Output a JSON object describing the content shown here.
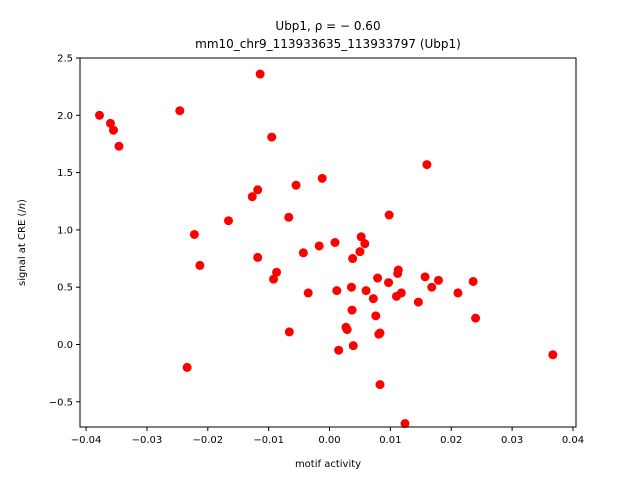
{
  "chart_data": {
    "type": "scatter",
    "title_line1": "Ubp1, ρ = − 0.60",
    "title_line2": "mm10_chr9_113933635_113933797 (Ubp1)",
    "xlabel": "motif activity",
    "ylabel": "signal at CRE (/n)",
    "xlim": [
      -0.041,
      0.0405
    ],
    "ylim": [
      -0.72,
      2.5
    ],
    "xticks": [
      -0.04,
      -0.03,
      -0.02,
      -0.01,
      0.0,
      0.01,
      0.02,
      0.03,
      0.04
    ],
    "xtick_labels": [
      "−0.04",
      "−0.03",
      "−0.02",
      "−0.01",
      "0.00",
      "0.01",
      "0.02",
      "0.03",
      "0.04"
    ],
    "yticks": [
      -0.5,
      0.0,
      0.5,
      1.0,
      1.5,
      2.0,
      2.5
    ],
    "ytick_labels": [
      "−0.5",
      "0.0",
      "0.5",
      "1.0",
      "1.5",
      "2.0",
      "2.5"
    ],
    "grid": false,
    "point_color": "#ff0000",
    "points": [
      {
        "x": -0.0378,
        "y": 2.0
      },
      {
        "x": -0.036,
        "y": 1.93
      },
      {
        "x": -0.0355,
        "y": 1.87
      },
      {
        "x": -0.0346,
        "y": 1.73
      },
      {
        "x": -0.0246,
        "y": 2.04
      },
      {
        "x": -0.0234,
        "y": -0.2
      },
      {
        "x": -0.0222,
        "y": 0.96
      },
      {
        "x": -0.0213,
        "y": 0.69
      },
      {
        "x": -0.0166,
        "y": 1.08
      },
      {
        "x": -0.0127,
        "y": 1.29
      },
      {
        "x": -0.0118,
        "y": 1.35
      },
      {
        "x": -0.0118,
        "y": 0.76
      },
      {
        "x": -0.0114,
        "y": 2.36
      },
      {
        "x": -0.0095,
        "y": 1.81
      },
      {
        "x": -0.0092,
        "y": 0.57
      },
      {
        "x": -0.0087,
        "y": 0.63
      },
      {
        "x": -0.0067,
        "y": 1.11
      },
      {
        "x": -0.0066,
        "y": 0.11
      },
      {
        "x": -0.0055,
        "y": 1.39
      },
      {
        "x": -0.0043,
        "y": 0.8
      },
      {
        "x": -0.0035,
        "y": 0.45
      },
      {
        "x": -0.0017,
        "y": 0.86
      },
      {
        "x": -0.0012,
        "y": 1.45
      },
      {
        "x": 0.0009,
        "y": 0.89
      },
      {
        "x": 0.0012,
        "y": 0.47
      },
      {
        "x": 0.0015,
        "y": -0.05
      },
      {
        "x": 0.0027,
        "y": 0.15
      },
      {
        "x": 0.0029,
        "y": 0.13
      },
      {
        "x": 0.0036,
        "y": 0.5
      },
      {
        "x": 0.0037,
        "y": 0.3
      },
      {
        "x": 0.0038,
        "y": 0.75
      },
      {
        "x": 0.0039,
        "y": -0.01
      },
      {
        "x": 0.005,
        "y": 0.81
      },
      {
        "x": 0.0052,
        "y": 0.94
      },
      {
        "x": 0.0058,
        "y": 0.88
      },
      {
        "x": 0.006,
        "y": 0.47
      },
      {
        "x": 0.0072,
        "y": 0.4
      },
      {
        "x": 0.0076,
        "y": 0.25
      },
      {
        "x": 0.0079,
        "y": 0.58
      },
      {
        "x": 0.0081,
        "y": 0.09
      },
      {
        "x": 0.0083,
        "y": 0.1
      },
      {
        "x": 0.0083,
        "y": -0.35
      },
      {
        "x": 0.0097,
        "y": 0.54
      },
      {
        "x": 0.0098,
        "y": 1.13
      },
      {
        "x": 0.011,
        "y": 0.42
      },
      {
        "x": 0.0112,
        "y": 0.62
      },
      {
        "x": 0.0113,
        "y": 0.65
      },
      {
        "x": 0.0118,
        "y": 0.45
      },
      {
        "x": 0.0124,
        "y": -0.69
      },
      {
        "x": 0.0146,
        "y": 0.37
      },
      {
        "x": 0.0157,
        "y": 0.59
      },
      {
        "x": 0.016,
        "y": 1.57
      },
      {
        "x": 0.0168,
        "y": 0.5
      },
      {
        "x": 0.0179,
        "y": 0.56
      },
      {
        "x": 0.0211,
        "y": 0.45
      },
      {
        "x": 0.0236,
        "y": 0.55
      },
      {
        "x": 0.024,
        "y": 0.23
      },
      {
        "x": 0.0367,
        "y": -0.09
      }
    ]
  }
}
